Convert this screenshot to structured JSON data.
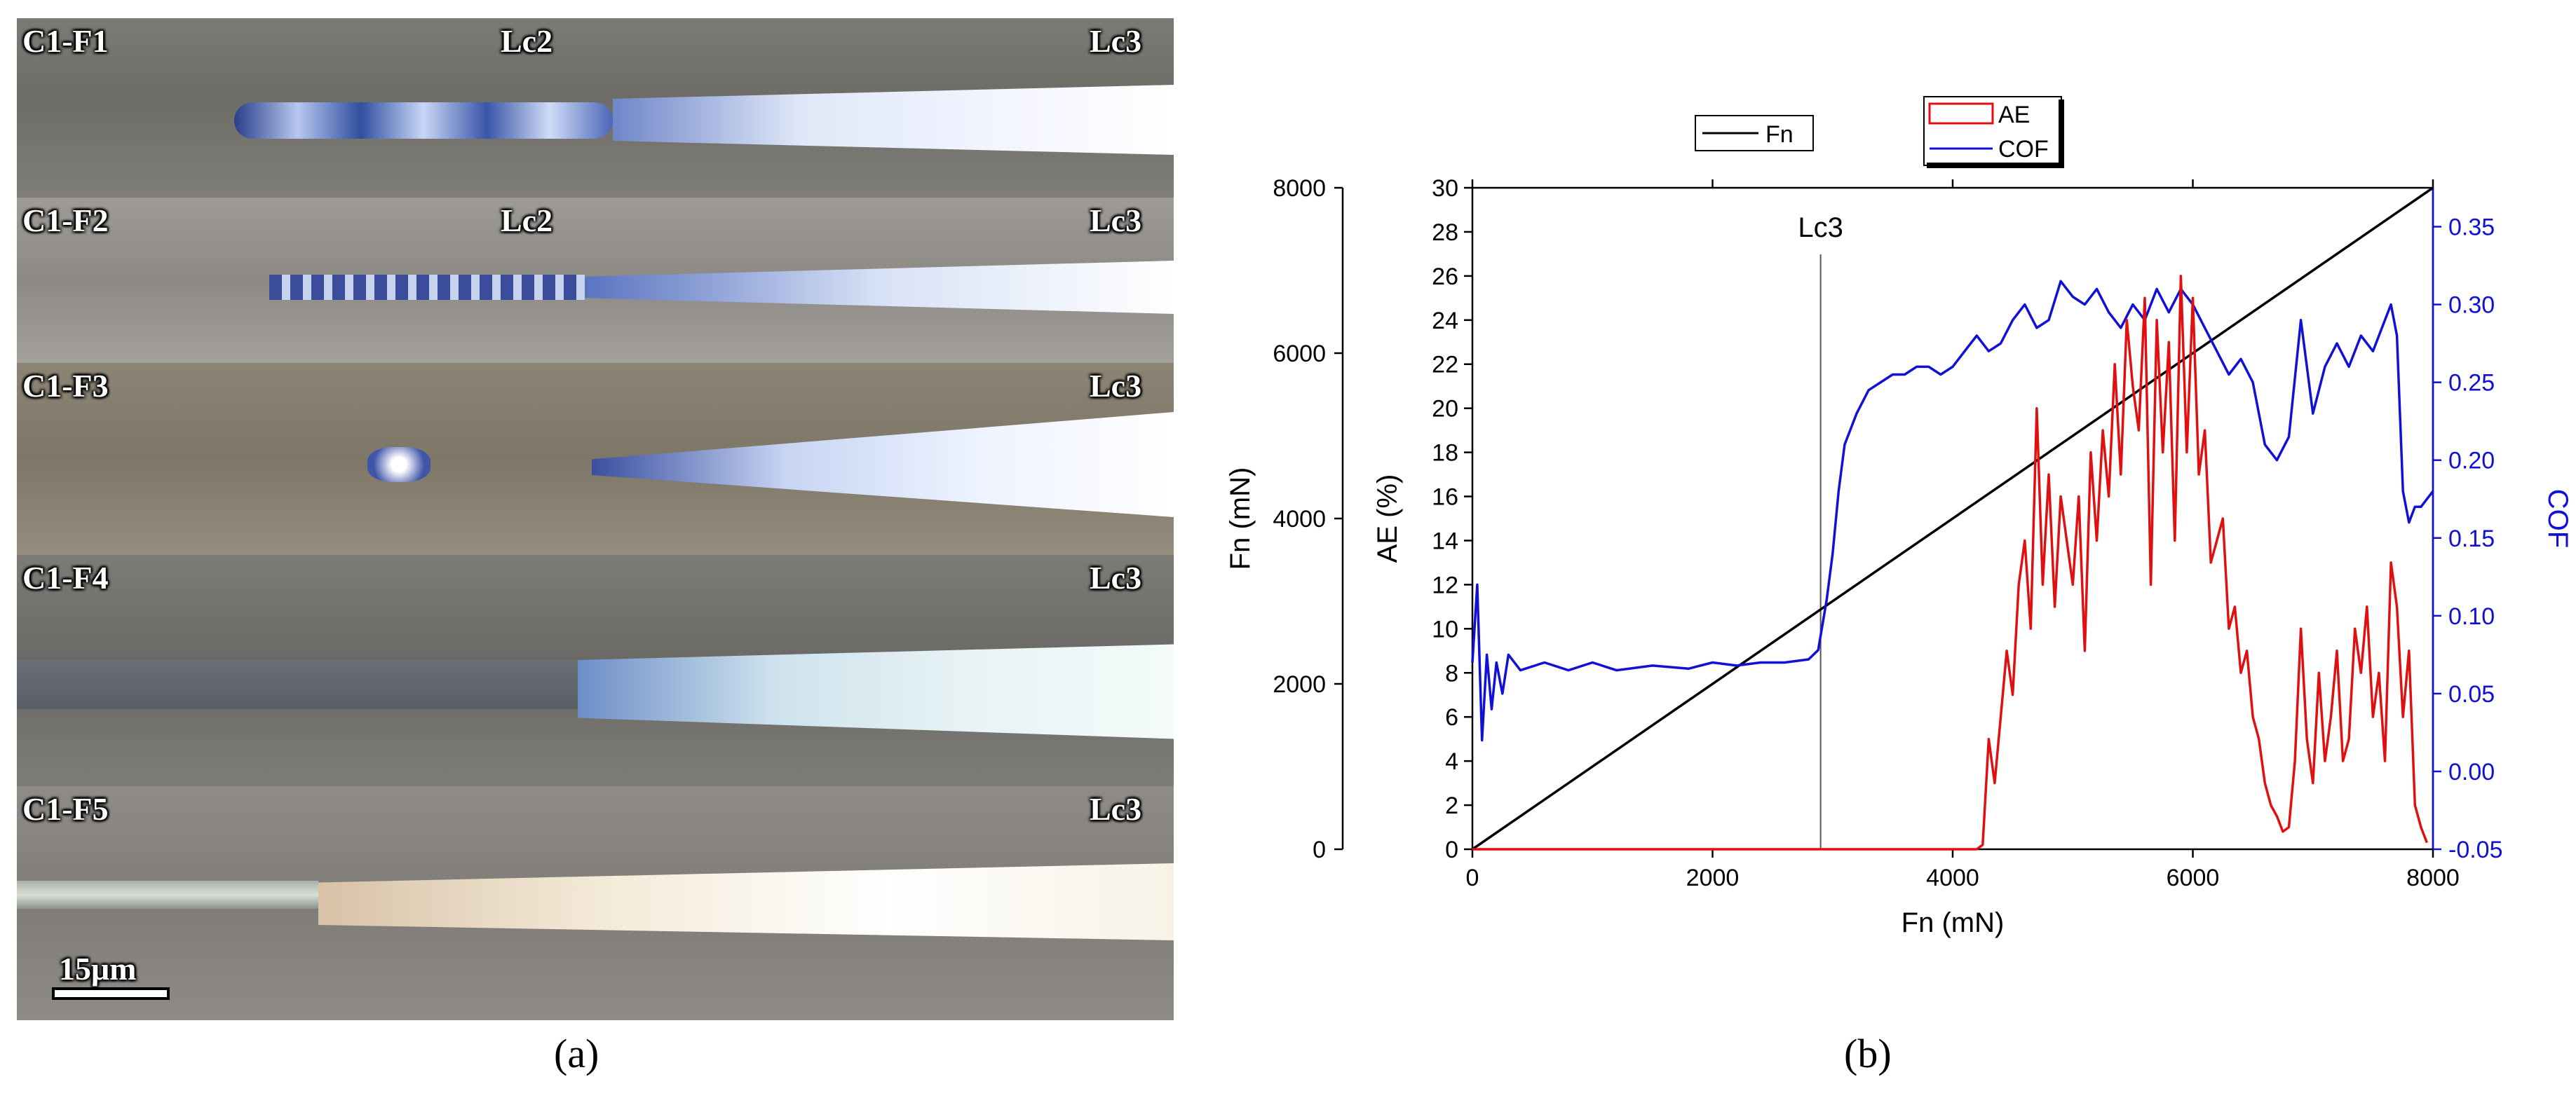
{
  "panel_a": {
    "strips": [
      {
        "name": "C1-F1",
        "label": "C1-F1",
        "lc_labels": [
          "Lc2",
          "Lc3"
        ]
      },
      {
        "name": "C1-F2",
        "label": "C1-F2",
        "lc_labels": [
          "Lc2",
          "Lc3"
        ]
      },
      {
        "name": "C1-F3",
        "label": "C1-F3",
        "lc_labels": [
          "Lc3"
        ]
      },
      {
        "name": "C1-F4",
        "label": "C1-F4",
        "lc_labels": [
          "Lc3"
        ]
      },
      {
        "name": "C1-F5",
        "label": "C1-F5",
        "lc_labels": [
          "Lc3"
        ]
      }
    ],
    "scale_bar": "15μm",
    "caption": "(a)"
  },
  "panel_b": {
    "caption": "(b)"
  },
  "chart_data": {
    "type": "line",
    "xlabel": "Fn (mN)",
    "xlim": [
      0,
      8000
    ],
    "xticks": [
      "0",
      "2000",
      "4000",
      "6000",
      "8000"
    ],
    "axes": {
      "fn": {
        "label": "Fn (mN)",
        "lim": [
          0,
          8000
        ],
        "ticks": [
          "0",
          "2000",
          "4000",
          "6000",
          "8000"
        ]
      },
      "ae": {
        "label": "AE (%)",
        "lim": [
          0,
          30
        ],
        "ticks": [
          "0",
          "2",
          "4",
          "6",
          "8",
          "10",
          "12",
          "14",
          "16",
          "18",
          "20",
          "22",
          "24",
          "26",
          "28",
          "30"
        ]
      },
      "cof": {
        "label": "COF",
        "lim": [
          -0.05,
          0.375
        ],
        "ticks": [
          "-0.05",
          "0.00",
          "0.05",
          "0.10",
          "0.15",
          "0.20",
          "0.25",
          "0.30",
          "0.35"
        ]
      }
    },
    "annotation": {
      "text": "Lc3",
      "x": 2900
    },
    "legend": [
      {
        "name": "Fn",
        "color": "#000000"
      },
      {
        "name": "AE",
        "color": "#e01010"
      },
      {
        "name": "COF",
        "color": "#1010d8"
      }
    ],
    "series": [
      {
        "name": "Fn",
        "axis": "fn",
        "color": "#000000",
        "x": [
          0,
          8000
        ],
        "y": [
          0,
          8000
        ]
      },
      {
        "name": "COF",
        "axis": "cof",
        "color": "#1010d8",
        "x": [
          0,
          40,
          80,
          120,
          160,
          200,
          250,
          300,
          400,
          600,
          800,
          1000,
          1200,
          1500,
          1800,
          2000,
          2200,
          2400,
          2600,
          2800,
          2880,
          2950,
          3000,
          3050,
          3100,
          3200,
          3300,
          3400,
          3500,
          3600,
          3700,
          3800,
          3900,
          4000,
          4100,
          4200,
          4300,
          4400,
          4500,
          4600,
          4700,
          4800,
          4900,
          5000,
          5100,
          5200,
          5300,
          5400,
          5500,
          5600,
          5700,
          5800,
          5900,
          6000,
          6100,
          6200,
          6300,
          6400,
          6500,
          6600,
          6700,
          6800,
          6900,
          7000,
          7100,
          7200,
          7300,
          7400,
          7500,
          7600,
          7650,
          7700,
          7750,
          7800,
          7850,
          7900,
          7950,
          8000
        ],
        "y": [
          0.07,
          0.12,
          0.02,
          0.075,
          0.04,
          0.07,
          0.05,
          0.075,
          0.065,
          0.07,
          0.065,
          0.07,
          0.065,
          0.068,
          0.066,
          0.07,
          0.068,
          0.07,
          0.07,
          0.072,
          0.078,
          0.11,
          0.14,
          0.18,
          0.21,
          0.23,
          0.245,
          0.25,
          0.255,
          0.255,
          0.26,
          0.26,
          0.255,
          0.26,
          0.27,
          0.28,
          0.27,
          0.275,
          0.29,
          0.3,
          0.285,
          0.29,
          0.315,
          0.305,
          0.3,
          0.31,
          0.295,
          0.285,
          0.3,
          0.29,
          0.31,
          0.295,
          0.31,
          0.3,
          0.285,
          0.27,
          0.255,
          0.265,
          0.25,
          0.21,
          0.2,
          0.215,
          0.29,
          0.23,
          0.26,
          0.275,
          0.26,
          0.28,
          0.27,
          0.29,
          0.3,
          0.28,
          0.18,
          0.16,
          0.17,
          0.17,
          0.175,
          0.18
        ]
      },
      {
        "name": "AE",
        "axis": "ae",
        "color": "#e01010",
        "x": [
          0,
          4200,
          4250,
          4300,
          4350,
          4400,
          4450,
          4500,
          4550,
          4600,
          4650,
          4700,
          4750,
          4800,
          4850,
          4900,
          4950,
          5000,
          5050,
          5100,
          5150,
          5200,
          5250,
          5300,
          5350,
          5400,
          5450,
          5500,
          5550,
          5600,
          5650,
          5700,
          5750,
          5800,
          5850,
          5900,
          5950,
          6000,
          6050,
          6100,
          6150,
          6200,
          6250,
          6300,
          6350,
          6400,
          6450,
          6500,
          6550,
          6600,
          6650,
          6700,
          6750,
          6800,
          6850,
          6900,
          6950,
          7000,
          7050,
          7100,
          7150,
          7200,
          7250,
          7300,
          7350,
          7400,
          7450,
          7500,
          7550,
          7600,
          7650,
          7700,
          7750,
          7800,
          7850,
          7900,
          7950
        ],
        "y": [
          0,
          0,
          0.2,
          5,
          3,
          6,
          9,
          7,
          12,
          14,
          10,
          20,
          12,
          17,
          11,
          16,
          14,
          12,
          16,
          9,
          18,
          14,
          19,
          16,
          22,
          17,
          24,
          21,
          19,
          25,
          12,
          24,
          18,
          23,
          14,
          26,
          18,
          25,
          17,
          19,
          13,
          14,
          15,
          10,
          11,
          8,
          9,
          6,
          5,
          3,
          2,
          1.5,
          0.8,
          1,
          4,
          10,
          5,
          3,
          8,
          4,
          6,
          9,
          4,
          5,
          10,
          8,
          11,
          6,
          8,
          4,
          13,
          11,
          6,
          9,
          2,
          1,
          0.3
        ]
      }
    ]
  }
}
